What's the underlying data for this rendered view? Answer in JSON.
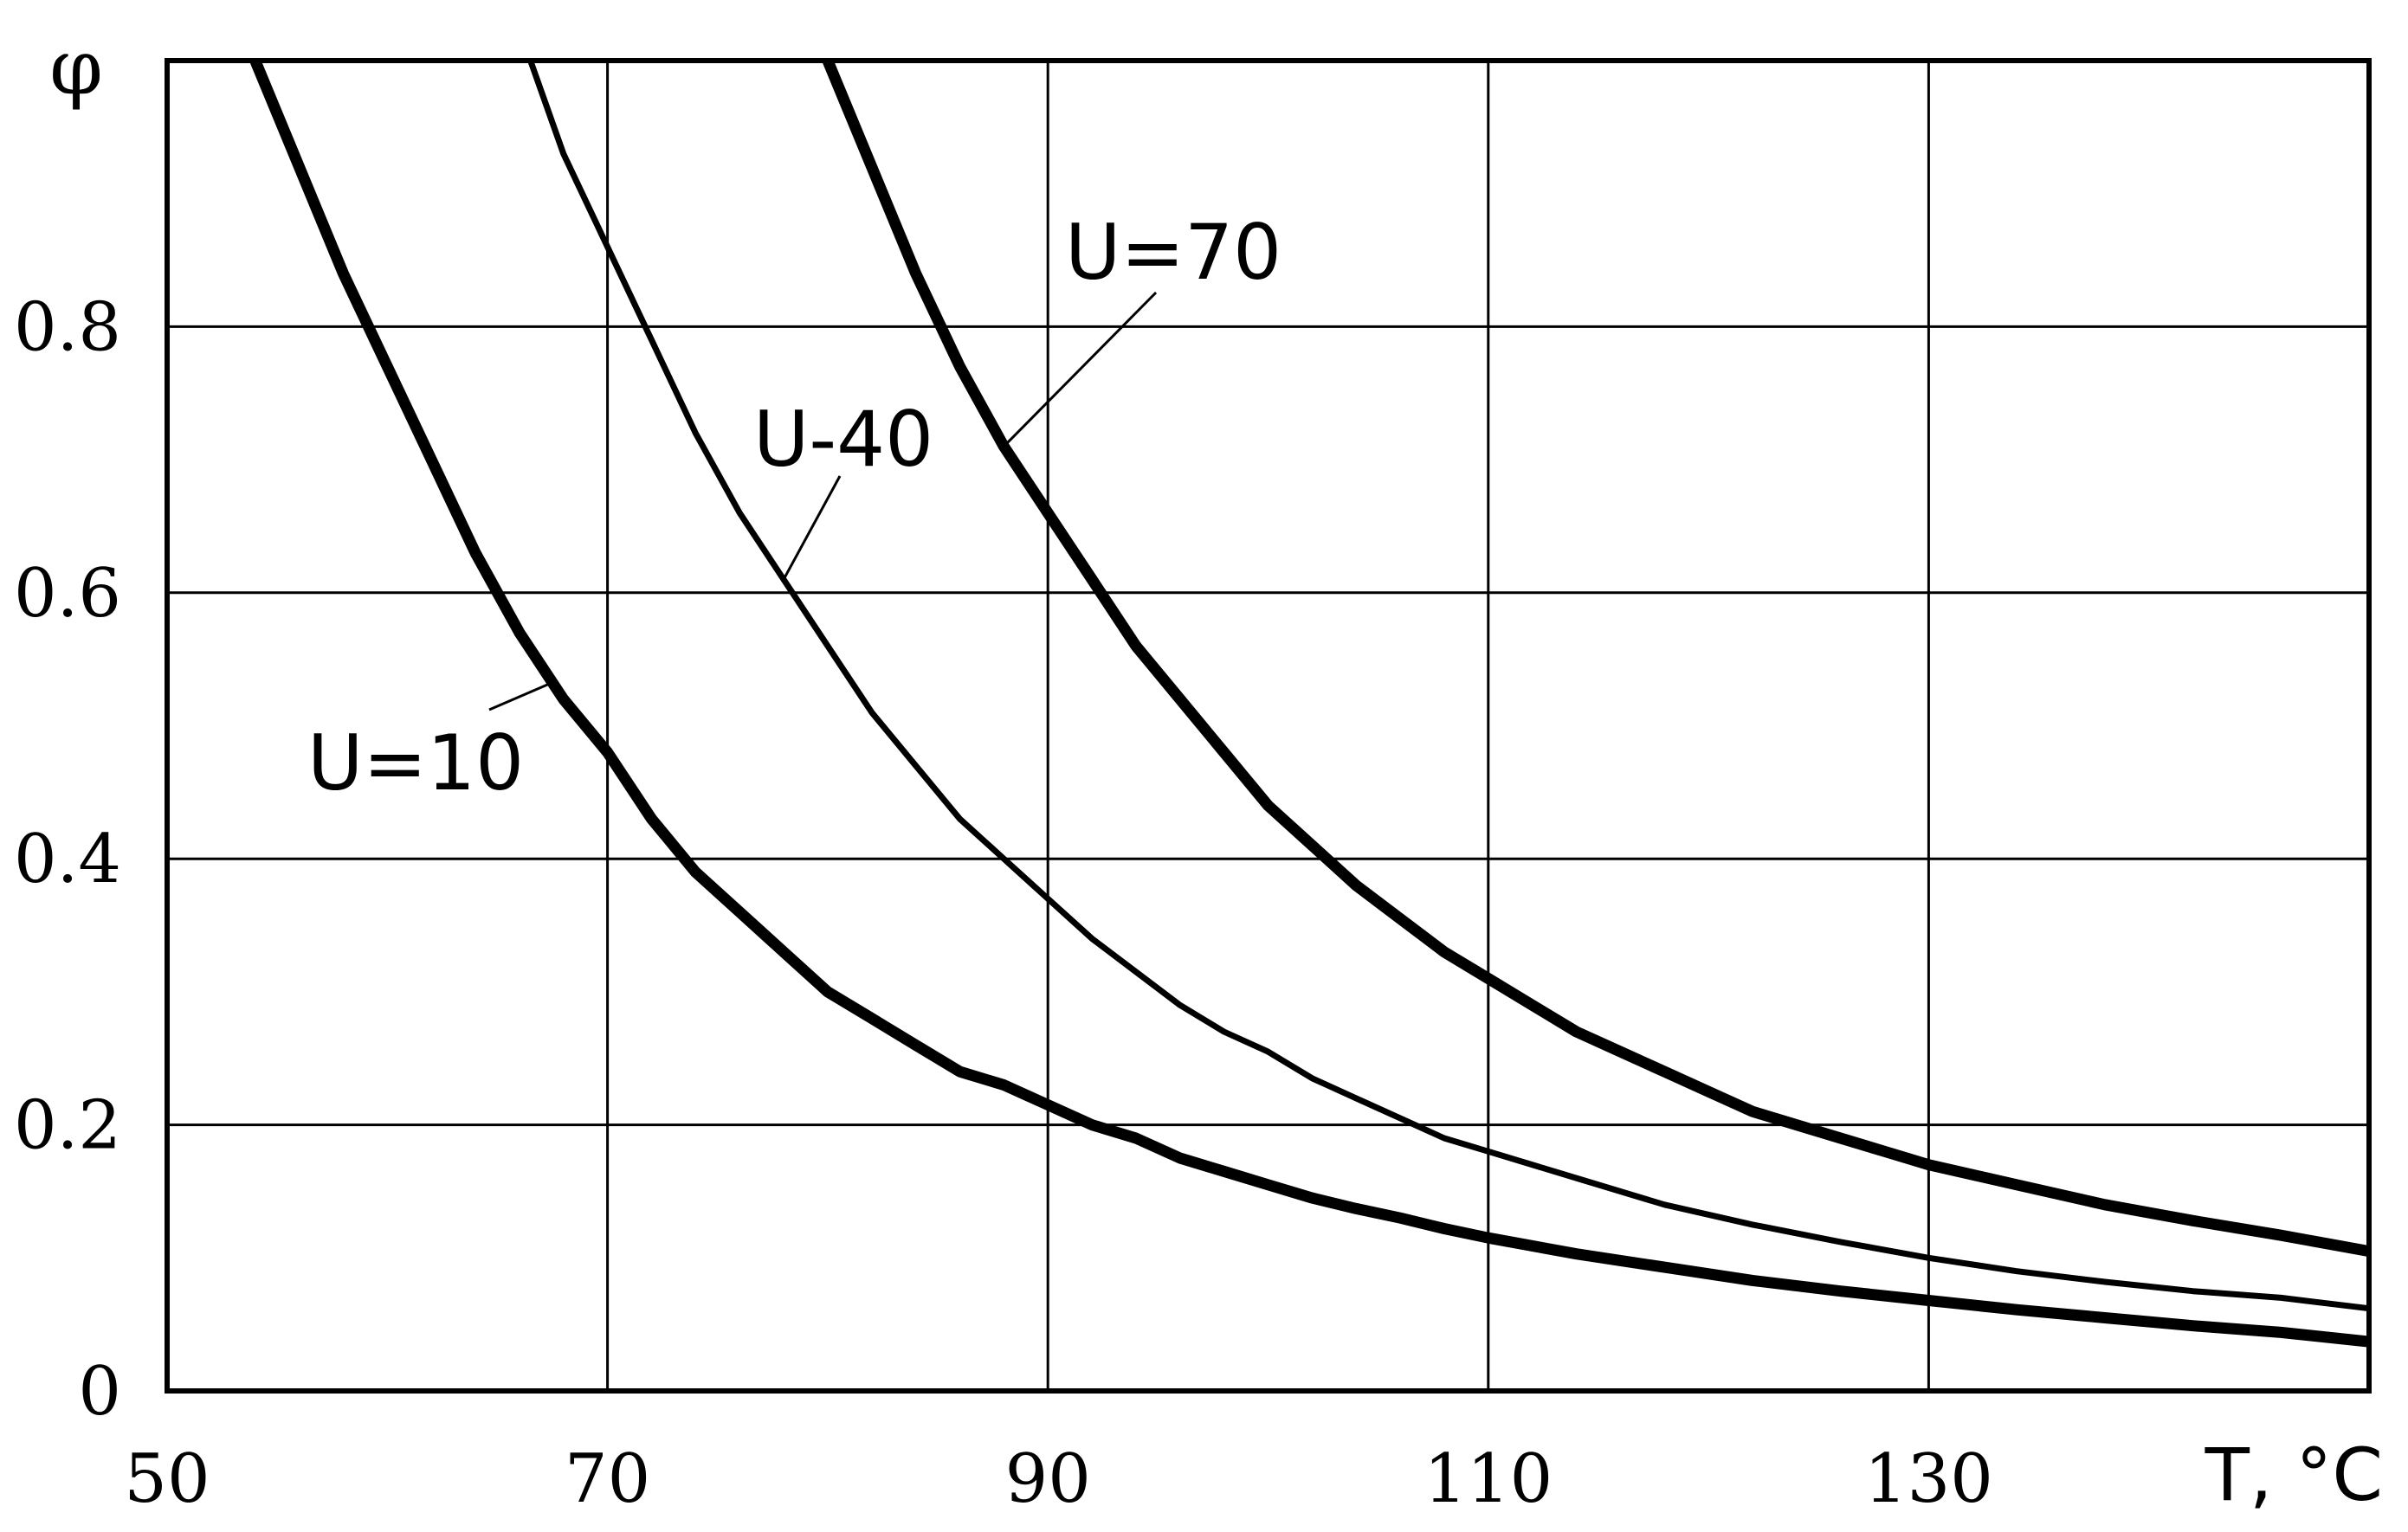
{
  "chart_data": {
    "type": "line",
    "title": "",
    "xlabel": "T, °C",
    "ylabel": "φ",
    "xlim": [
      50,
      150
    ],
    "ylim": [
      0,
      1.0
    ],
    "x_ticks": [
      "50",
      "70",
      "90",
      "110",
      "130"
    ],
    "y_ticks": [
      "0",
      "0.2",
      "0.4",
      "0.6",
      "0.8"
    ],
    "grid": true,
    "series": [
      {
        "name": "U=10",
        "x": [
          54,
          56,
          58,
          60,
          62,
          64,
          66,
          68,
          70,
          72,
          74,
          76,
          78,
          80,
          82,
          84,
          86,
          88,
          90,
          92,
          94,
          96,
          98,
          100,
          102,
          104,
          106,
          108,
          110,
          114,
          118,
          122,
          126,
          130,
          134,
          138,
          142,
          146,
          150
        ],
        "y": [
          1.0,
          0.92,
          0.84,
          0.77,
          0.7,
          0.63,
          0.57,
          0.52,
          0.48,
          0.43,
          0.39,
          0.36,
          0.33,
          0.3,
          0.28,
          0.26,
          0.24,
          0.23,
          0.215,
          0.2,
          0.19,
          0.175,
          0.165,
          0.155,
          0.145,
          0.137,
          0.13,
          0.122,
          0.115,
          0.103,
          0.093,
          0.083,
          0.075,
          0.068,
          0.061,
          0.055,
          0.049,
          0.044,
          0.037
        ]
      },
      {
        "name": "U-40",
        "x": [
          66.5,
          68,
          70,
          72,
          74,
          76,
          78,
          80,
          82,
          84,
          86,
          88,
          90,
          92,
          94,
          96,
          98,
          100,
          102,
          104,
          106,
          108,
          110,
          114,
          118,
          122,
          126,
          130,
          134,
          138,
          142,
          146,
          150
        ],
        "y": [
          1.0,
          0.93,
          0.86,
          0.79,
          0.72,
          0.66,
          0.61,
          0.56,
          0.51,
          0.47,
          0.43,
          0.4,
          0.37,
          0.34,
          0.315,
          0.29,
          0.27,
          0.255,
          0.235,
          0.22,
          0.205,
          0.19,
          0.18,
          0.16,
          0.14,
          0.125,
          0.112,
          0.1,
          0.09,
          0.082,
          0.075,
          0.07,
          0.062
        ]
      },
      {
        "name": "U=70",
        "x": [
          80,
          82,
          84,
          86,
          88,
          90,
          92,
          94,
          96,
          98,
          100,
          102,
          104,
          106,
          108,
          110,
          112,
          114,
          116,
          118,
          120,
          122,
          124,
          126,
          128,
          130,
          134,
          138,
          142,
          146,
          150
        ],
        "y": [
          1.0,
          0.92,
          0.84,
          0.77,
          0.71,
          0.66,
          0.61,
          0.56,
          0.52,
          0.48,
          0.44,
          0.41,
          0.38,
          0.355,
          0.33,
          0.31,
          0.29,
          0.27,
          0.255,
          0.24,
          0.225,
          0.21,
          0.2,
          0.19,
          0.18,
          0.17,
          0.155,
          0.14,
          0.128,
          0.117,
          0.105
        ]
      }
    ],
    "annotations": [
      {
        "text": "U=10",
        "series": "U=10",
        "at_x": 67.5
      },
      {
        "text": "U-40",
        "series": "U-40",
        "at_x": 78
      },
      {
        "text": "U=70",
        "series": "U=70",
        "at_x": 88
      }
    ]
  }
}
